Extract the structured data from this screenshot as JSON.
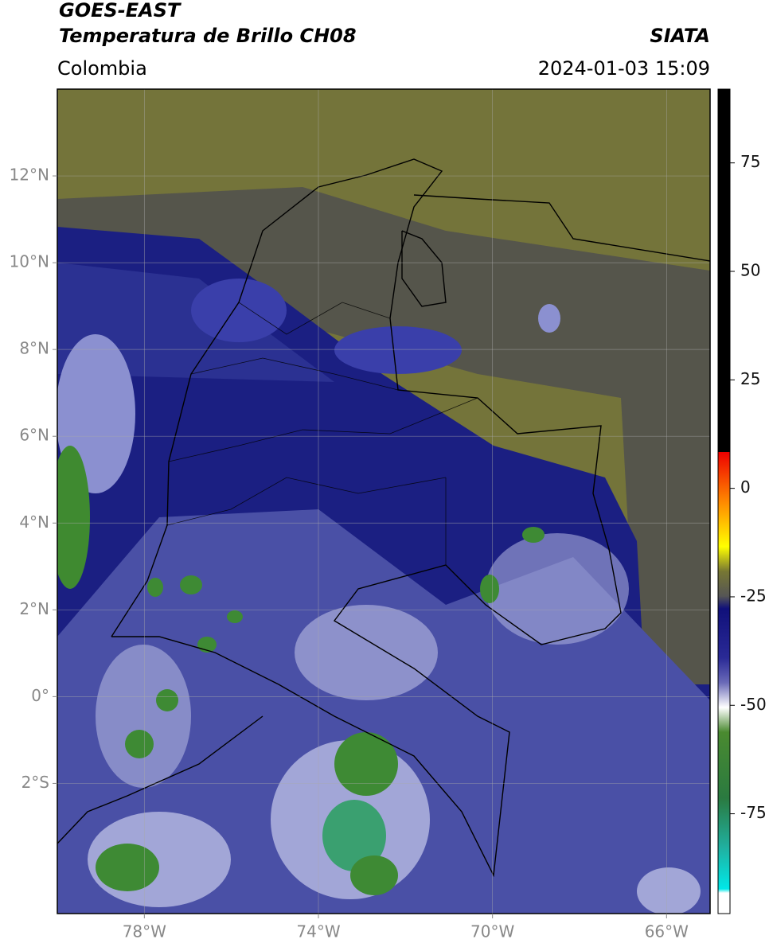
{
  "header": {
    "satellite": "GOES-EAST",
    "product": "Temperatura de Brillo CH08",
    "source": "SIATA",
    "region": "Colombia",
    "datetime": "2024-01-03 15:09"
  },
  "map": {
    "xlim": [
      -80,
      -65
    ],
    "ylim": [
      -5,
      14
    ],
    "xticks": [
      {
        "value": -78,
        "label": "78°W"
      },
      {
        "value": -74,
        "label": "74°W"
      },
      {
        "value": -70,
        "label": "70°W"
      },
      {
        "value": -66,
        "label": "66°W"
      }
    ],
    "yticks": [
      {
        "value": 12,
        "label": "12°N"
      },
      {
        "value": 10,
        "label": "10°N"
      },
      {
        "value": 8,
        "label": "8°N"
      },
      {
        "value": 6,
        "label": "6°N"
      },
      {
        "value": 4,
        "label": "4°N"
      },
      {
        "value": 2,
        "label": "2°N"
      },
      {
        "value": 0,
        "label": "0°"
      },
      {
        "value": -2,
        "label": "2°S"
      }
    ]
  },
  "colorbar": {
    "lim": [
      -98,
      92
    ],
    "ticks": [
      75,
      50,
      25,
      0,
      -25,
      -50,
      -75
    ]
  }
}
